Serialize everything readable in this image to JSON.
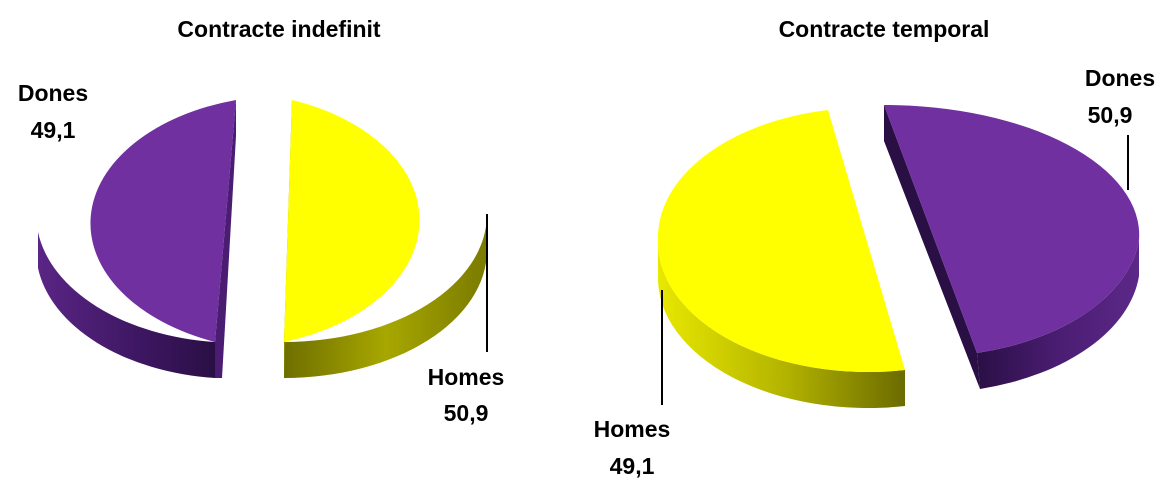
{
  "chart_data": [
    {
      "type": "pie",
      "title": "Contracte indefinit",
      "slices": [
        {
          "label": "Dones",
          "value": 49.1,
          "value_text": "49,1",
          "color": "#7030A0"
        },
        {
          "label": "Homes",
          "value": 50.9,
          "value_text": "50,9",
          "color": "#FFFF00"
        }
      ]
    },
    {
      "type": "pie",
      "title": "Contracte temporal",
      "slices": [
        {
          "label": "Dones",
          "value": 50.9,
          "value_text": "50,9",
          "color": "#7030A0"
        },
        {
          "label": "Homes",
          "value": 49.1,
          "value_text": "49,1",
          "color": "#FFFF00"
        }
      ]
    }
  ]
}
